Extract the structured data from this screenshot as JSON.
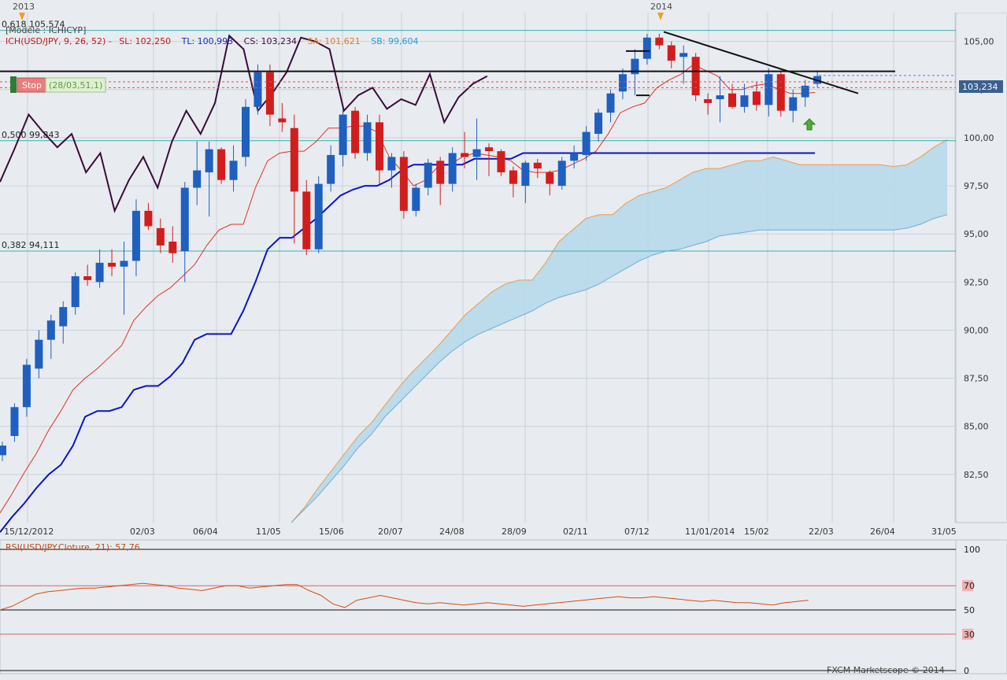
{
  "header": {
    "year_labels": [
      "2013",
      "2014"
    ],
    "model_label": "[Modèle : ICHICYP]",
    "indicator_prefix": "ICH(USD/JPY, 9, 26, 52) -",
    "sl": "SL: 102,250",
    "tl": "TL: 100,993",
    "cs": "CS: 103,234",
    "sa": "SA: 101,621",
    "sb": "SB: 99,604"
  },
  "stop_label": "Stop",
  "stop_info": "(28/03,51,1)",
  "fib_labels": [
    "0,618 105,574",
    "0,500 99,843",
    "0,382 94,111"
  ],
  "current_price": "103,234",
  "colors": {
    "background": "#e8ecf0",
    "grid": "#c7d1da",
    "bull": "#1f5fbf",
    "bear": "#d21d1d",
    "tenkan": "#e23020",
    "kijun": "#0a14c8",
    "chikou": "#3a0a3a",
    "cloud": "#b7d9ea",
    "senkou_a": "#ee9a4a",
    "senkou_b": "#6aaee0",
    "fib": "#3bb0b0",
    "rsi": "#d84a10"
  },
  "rsi_panel": {
    "title": "RSI(USD/JPY.Cloture, 21): 57,76",
    "levels": [
      "100",
      "70",
      "50",
      "30",
      "0"
    ]
  },
  "footer": "FXCM Marketscope © 2014",
  "chart_data": {
    "type": "candlestick",
    "ylim": [
      80,
      106.5
    ],
    "yticks": [
      "82,50",
      "85,00",
      "87,50",
      "90,00",
      "92,50",
      "95,00",
      "97,50",
      "100,00",
      "102,50",
      "105,00"
    ],
    "xticks": [
      "15/12/2012",
      "02/03",
      "06/04",
      "11/05",
      "15/06",
      "20/07",
      "24/08",
      "28/09",
      "02/11",
      "07/12",
      "11/01/2014",
      "15/02",
      "22/03",
      "26/04",
      "31/05"
    ],
    "fib_levels": [
      105.574,
      99.843,
      94.111
    ],
    "candles": [
      {
        "o": 83.5,
        "h": 84.2,
        "l": 83.2,
        "c": 84.0
      },
      {
        "o": 84.5,
        "h": 86.2,
        "l": 84.2,
        "c": 86.0
      },
      {
        "o": 86.0,
        "h": 88.5,
        "l": 85.5,
        "c": 88.2
      },
      {
        "o": 88.0,
        "h": 90.0,
        "l": 87.5,
        "c": 89.5
      },
      {
        "o": 89.5,
        "h": 90.8,
        "l": 88.5,
        "c": 90.5
      },
      {
        "o": 90.2,
        "h": 91.5,
        "l": 89.3,
        "c": 91.2
      },
      {
        "o": 91.2,
        "h": 93.0,
        "l": 90.8,
        "c": 92.8
      },
      {
        "o": 92.8,
        "h": 93.4,
        "l": 92.3,
        "c": 92.6
      },
      {
        "o": 92.5,
        "h": 94.2,
        "l": 92.2,
        "c": 93.5
      },
      {
        "o": 93.5,
        "h": 94.2,
        "l": 92.8,
        "c": 93.3
      },
      {
        "o": 93.3,
        "h": 94.6,
        "l": 90.8,
        "c": 93.6
      },
      {
        "o": 93.6,
        "h": 96.8,
        "l": 92.8,
        "c": 96.2
      },
      {
        "o": 96.2,
        "h": 96.6,
        "l": 95.2,
        "c": 95.4
      },
      {
        "o": 95.3,
        "h": 95.8,
        "l": 94.0,
        "c": 94.4
      },
      {
        "o": 94.6,
        "h": 95.4,
        "l": 93.5,
        "c": 94.0
      },
      {
        "o": 94.1,
        "h": 97.7,
        "l": 92.5,
        "c": 97.4
      },
      {
        "o": 97.4,
        "h": 99.8,
        "l": 96.5,
        "c": 98.3
      },
      {
        "o": 98.2,
        "h": 99.8,
        "l": 95.9,
        "c": 99.4
      },
      {
        "o": 99.4,
        "h": 99.5,
        "l": 97.6,
        "c": 97.8
      },
      {
        "o": 97.8,
        "h": 99.6,
        "l": 97.2,
        "c": 98.8
      },
      {
        "o": 99.0,
        "h": 102.0,
        "l": 98.5,
        "c": 101.6
      },
      {
        "o": 101.6,
        "h": 103.8,
        "l": 101.2,
        "c": 103.4
      },
      {
        "o": 103.4,
        "h": 103.8,
        "l": 100.6,
        "c": 101.2
      },
      {
        "o": 101.0,
        "h": 101.8,
        "l": 100.3,
        "c": 100.8
      },
      {
        "o": 100.5,
        "h": 101.2,
        "l": 94.5,
        "c": 97.2
      },
      {
        "o": 97.2,
        "h": 97.8,
        "l": 93.9,
        "c": 94.2
      },
      {
        "o": 94.2,
        "h": 98.0,
        "l": 94.0,
        "c": 97.6
      },
      {
        "o": 97.6,
        "h": 99.6,
        "l": 97.2,
        "c": 99.1
      },
      {
        "o": 99.1,
        "h": 101.5,
        "l": 98.5,
        "c": 101.2
      },
      {
        "o": 101.4,
        "h": 101.6,
        "l": 98.9,
        "c": 99.2
      },
      {
        "o": 99.2,
        "h": 101.2,
        "l": 98.8,
        "c": 100.8
      },
      {
        "o": 100.8,
        "h": 101.2,
        "l": 97.6,
        "c": 98.3
      },
      {
        "o": 98.3,
        "h": 99.2,
        "l": 97.4,
        "c": 99.0
      },
      {
        "o": 99.0,
        "h": 99.3,
        "l": 95.8,
        "c": 96.2
      },
      {
        "o": 96.2,
        "h": 97.6,
        "l": 95.9,
        "c": 97.4
      },
      {
        "o": 97.4,
        "h": 98.9,
        "l": 97.0,
        "c": 98.7
      },
      {
        "o": 98.8,
        "h": 99.0,
        "l": 96.5,
        "c": 97.6
      },
      {
        "o": 97.6,
        "h": 99.5,
        "l": 97.2,
        "c": 99.2
      },
      {
        "o": 99.2,
        "h": 100.3,
        "l": 98.4,
        "c": 99.0
      },
      {
        "o": 99.0,
        "h": 101.0,
        "l": 97.8,
        "c": 99.4
      },
      {
        "o": 99.5,
        "h": 99.7,
        "l": 98.0,
        "c": 99.3
      },
      {
        "o": 99.3,
        "h": 99.4,
        "l": 98.0,
        "c": 98.2
      },
      {
        "o": 98.3,
        "h": 98.5,
        "l": 96.9,
        "c": 97.6
      },
      {
        "o": 97.5,
        "h": 98.8,
        "l": 96.6,
        "c": 98.7
      },
      {
        "o": 98.7,
        "h": 98.9,
        "l": 97.9,
        "c": 98.4
      },
      {
        "o": 98.2,
        "h": 98.3,
        "l": 97.0,
        "c": 97.6
      },
      {
        "o": 97.5,
        "h": 99.0,
        "l": 97.3,
        "c": 98.8
      },
      {
        "o": 98.8,
        "h": 99.6,
        "l": 98.4,
        "c": 99.2
      },
      {
        "o": 99.1,
        "h": 100.6,
        "l": 98.8,
        "c": 100.3
      },
      {
        "o": 100.2,
        "h": 101.5,
        "l": 99.8,
        "c": 101.3
      },
      {
        "o": 101.3,
        "h": 102.5,
        "l": 100.8,
        "c": 102.3
      },
      {
        "o": 102.4,
        "h": 103.6,
        "l": 102.0,
        "c": 103.3
      },
      {
        "o": 103.3,
        "h": 104.6,
        "l": 102.2,
        "c": 104.1
      },
      {
        "o": 104.1,
        "h": 105.4,
        "l": 103.8,
        "c": 105.2
      },
      {
        "o": 105.2,
        "h": 105.4,
        "l": 104.6,
        "c": 104.8
      },
      {
        "o": 104.8,
        "h": 105.0,
        "l": 103.6,
        "c": 104.0
      },
      {
        "o": 104.2,
        "h": 104.8,
        "l": 102.8,
        "c": 104.4
      },
      {
        "o": 104.2,
        "h": 104.4,
        "l": 101.9,
        "c": 102.2
      },
      {
        "o": 102.0,
        "h": 102.3,
        "l": 101.2,
        "c": 101.8
      },
      {
        "o": 102.0,
        "h": 103.2,
        "l": 100.8,
        "c": 102.2
      },
      {
        "o": 102.3,
        "h": 102.8,
        "l": 101.5,
        "c": 101.6
      },
      {
        "o": 101.6,
        "h": 102.8,
        "l": 101.3,
        "c": 102.2
      },
      {
        "o": 102.4,
        "h": 102.9,
        "l": 101.4,
        "c": 101.7
      },
      {
        "o": 101.7,
        "h": 103.6,
        "l": 101.1,
        "c": 103.3
      },
      {
        "o": 103.3,
        "h": 103.5,
        "l": 101.1,
        "c": 101.4
      },
      {
        "o": 101.4,
        "h": 102.5,
        "l": 100.8,
        "c": 102.1
      },
      {
        "o": 102.1,
        "h": 103.0,
        "l": 101.6,
        "c": 102.7
      },
      {
        "o": 102.8,
        "h": 103.5,
        "l": 102.6,
        "c": 103.2
      }
    ],
    "tenkan": [
      80.5,
      81.5,
      82.6,
      83.6,
      84.8,
      85.8,
      86.9,
      87.5,
      88.0,
      88.6,
      89.2,
      90.5,
      91.2,
      91.8,
      92.2,
      92.8,
      93.4,
      94.4,
      95.2,
      95.5,
      95.5,
      97.4,
      98.8,
      99.2,
      99.3,
      99.3,
      99.8,
      100.5,
      100.5,
      100.6,
      100.6,
      100.3,
      99.0,
      98.3,
      97.5,
      97.8,
      98.5,
      98.6,
      99.0,
      99.2,
      99.1,
      99.0,
      98.8,
      98.3,
      98.2,
      98.2,
      98.3,
      98.6,
      98.9,
      99.3,
      100.2,
      101.3,
      101.6,
      101.8,
      102.6,
      103.0,
      103.3,
      103.8,
      103.5,
      103.2,
      102.5,
      102.5,
      102.7,
      102.8,
      102.5,
      102.3,
      102.3,
      102.35
    ],
    "kijun": [
      79.5,
      80.3,
      81.0,
      81.8,
      82.5,
      83.0,
      84.0,
      85.5,
      85.8,
      85.8,
      86.0,
      86.9,
      87.1,
      87.1,
      87.6,
      88.3,
      89.5,
      89.8,
      89.8,
      89.8,
      91.0,
      92.5,
      94.2,
      94.8,
      94.8,
      95.3,
      95.8,
      96.4,
      97.0,
      97.3,
      97.5,
      97.5,
      97.8,
      98.3,
      98.6,
      98.6,
      98.6,
      98.6,
      98.6,
      98.9,
      98.9,
      98.9,
      98.9,
      99.2,
      99.2,
      99.2,
      99.2,
      99.2,
      99.2,
      99.2,
      99.2,
      99.2,
      99.2,
      99.2,
      99.2,
      99.2,
      99.2,
      99.2,
      99.2,
      99.2,
      99.2,
      99.2,
      99.2,
      99.2,
      99.2,
      99.2,
      99.2,
      99.2
    ],
    "chikou": [
      97.7,
      99.4,
      101.2,
      100.3,
      99.5,
      100.2,
      98.2,
      99.2,
      96.2,
      97.8,
      99.0,
      97.4,
      99.8,
      101.4,
      100.2,
      101.8,
      105.3,
      104.6,
      101.4,
      102.3,
      103.4,
      105.2,
      105.0,
      104.6,
      101.4,
      102.2,
      102.6,
      101.5,
      102.0,
      101.7,
      103.3,
      100.8,
      102.1,
      102.8,
      103.2
    ],
    "senkou_a": [
      80,
      80.8,
      81.8,
      82.7,
      83.6,
      84.5,
      85.2,
      86.1,
      87.0,
      87.8,
      88.5,
      89.2,
      90.0,
      90.8,
      91.4,
      92.0,
      92.4,
      92.6,
      92.6,
      93.5,
      94.6,
      95.2,
      95.8,
      96.0,
      96.0,
      96.6,
      97.0,
      97.2,
      97.4,
      97.8,
      98.2,
      98.4,
      98.4,
      98.6,
      98.8,
      98.8,
      99.0,
      98.8,
      98.6,
      98.6,
      98.6,
      98.6,
      98.6,
      98.6,
      98.6,
      98.5,
      98.6,
      99.0,
      99.5,
      99.9
    ],
    "senkou_b": [
      80,
      80.7,
      81.4,
      82.2,
      83.0,
      83.9,
      84.6,
      85.5,
      86.2,
      86.9,
      87.6,
      88.3,
      88.9,
      89.4,
      89.8,
      90.1,
      90.4,
      90.7,
      91.0,
      91.4,
      91.7,
      91.9,
      92.1,
      92.4,
      92.8,
      93.2,
      93.6,
      93.9,
      94.1,
      94.2,
      94.4,
      94.6,
      94.9,
      95.0,
      95.1,
      95.2,
      95.2,
      95.2,
      95.2,
      95.2,
      95.2,
      95.2,
      95.2,
      95.2,
      95.2,
      95.2,
      95.3,
      95.5,
      95.8,
      96.0
    ]
  },
  "rsi_data": {
    "range": [
      0,
      100
    ],
    "values": [
      50,
      53,
      58,
      63,
      65,
      66,
      67,
      68,
      68,
      69,
      70,
      71,
      72,
      71,
      70,
      68,
      67,
      66,
      68,
      70,
      70,
      68,
      69,
      70,
      71,
      71,
      66,
      62,
      55,
      52,
      58,
      60,
      62,
      60,
      58,
      56,
      55,
      56,
      55,
      54,
      55,
      56,
      55,
      54,
      53,
      54,
      55,
      56,
      57,
      58,
      59,
      60,
      61,
      60,
      60,
      61,
      60,
      59,
      58,
      57,
      58,
      57,
      56,
      56,
      55,
      54,
      56,
      57,
      58
    ]
  }
}
